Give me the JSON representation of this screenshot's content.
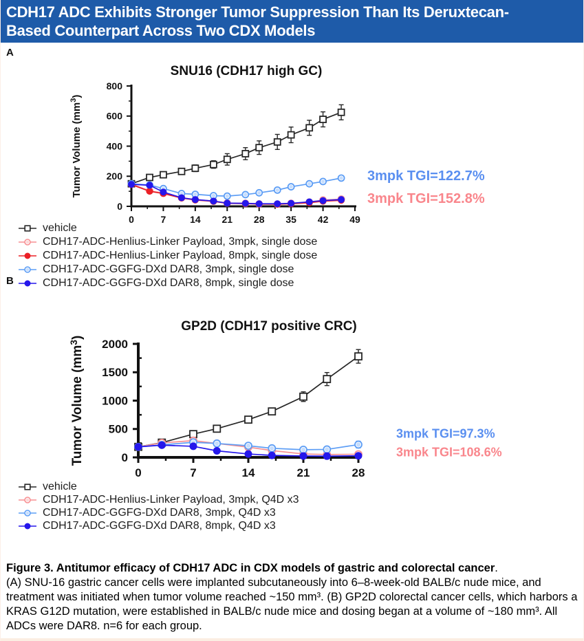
{
  "header": {
    "title_line1": "CDH17 ADC Exhibits Stronger Tumor Suppression Than Its Deruxtecan-",
    "title_line2": "Based Counterpart Across Two CDX Models",
    "bg_color": "#1E5BA9",
    "text_color": "#FFFFFF"
  },
  "panel_labels": {
    "a": "A",
    "b": "B"
  },
  "colors": {
    "vehicle": "#262626",
    "henlius_3mpk": "#F78F92",
    "henlius_8mpk": "#EB2026",
    "dxd_3mpk": "#5C9DF5",
    "dxd_8mpk": "#2517EB",
    "annotation_blue": "#5A8FF0",
    "annotation_pink": "#F9868C",
    "bottom_strip": "#fbeee2"
  },
  "chart_data": [
    {
      "type": "line",
      "title": "SNU16 (CDH17 high GC)",
      "ylabel": "Tumor Volume (mm³)",
      "xlabel": "",
      "xlim": [
        0,
        49
      ],
      "ylim": [
        0,
        800
      ],
      "xticks": [
        0,
        7,
        14,
        21,
        28,
        35,
        42,
        49
      ],
      "yticks": [
        0,
        200,
        400,
        600,
        800
      ],
      "grid": false,
      "legend_position": "below",
      "x": [
        0,
        4,
        7,
        11,
        14,
        18,
        21,
        25,
        28,
        32,
        35,
        39,
        42,
        46
      ],
      "series": [
        {
          "name": "vehicle",
          "color": "#262626",
          "marker": "open-square",
          "values": [
            150,
            192,
            210,
            232,
            253,
            278,
            312,
            350,
            390,
            428,
            475,
            522,
            578,
            625
          ],
          "err": [
            10,
            18,
            20,
            20,
            22,
            25,
            38,
            40,
            45,
            50,
            52,
            50,
            50,
            50
          ]
        },
        {
          "name": "CDH17-ADC-Henlius-Linker Payload, 3mpk, single dose",
          "color": "#F78F92",
          "marker": "open-circle",
          "values": [
            148,
            103,
            88,
            57,
            45,
            35,
            22,
            20,
            16,
            15,
            20,
            28,
            42,
            48
          ],
          "err": [
            10,
            12,
            10,
            8,
            6,
            5,
            4,
            4,
            4,
            4,
            4,
            5,
            8,
            8
          ]
        },
        {
          "name": "CDH17-ADC-Henlius-Linker Payload, 8mpk, single dose",
          "color": "#EB2026",
          "marker": "filled-circle",
          "values": [
            145,
            100,
            85,
            55,
            42,
            33,
            20,
            18,
            15,
            14,
            17,
            24,
            34,
            40
          ],
          "err": [
            10,
            10,
            10,
            8,
            6,
            5,
            4,
            4,
            4,
            4,
            4,
            5,
            6,
            6
          ]
        },
        {
          "name": "CDH17-ADC-GGFG-DXd DAR8, 3mpk, single dose",
          "color": "#5C9DF5",
          "marker": "open-circle",
          "values": [
            150,
            142,
            118,
            85,
            80,
            71,
            68,
            78,
            90,
            108,
            130,
            150,
            165,
            188
          ],
          "err": [
            10,
            10,
            10,
            8,
            8,
            8,
            8,
            8,
            8,
            10,
            12,
            10,
            10,
            12
          ]
        },
        {
          "name": "CDH17-ADC-GGFG-DXd DAR8, 8mpk, single dose",
          "color": "#2517EB",
          "marker": "filled-circle",
          "values": [
            146,
            140,
            95,
            57,
            45,
            35,
            21,
            20,
            17,
            17,
            20,
            30,
            38,
            45
          ],
          "err": [
            10,
            8,
            8,
            6,
            5,
            4,
            4,
            4,
            4,
            4,
            4,
            5,
            6,
            6
          ]
        }
      ],
      "annotations": [
        {
          "text": "3mpk TGI=122.7%",
          "color": "#5A8FF0",
          "y": 205
        },
        {
          "text": "3mpk TGI=152.8%",
          "color": "#F9868C",
          "y": 55
        }
      ]
    },
    {
      "type": "line",
      "title": "GP2D (CDH17 positive CRC)",
      "ylabel": "Tumor Volume (mm³)",
      "xlabel": "",
      "xlim": [
        0,
        28
      ],
      "ylim": [
        0,
        2000
      ],
      "xticks": [
        0,
        7,
        14,
        21,
        28
      ],
      "yticks": [
        0,
        500,
        1000,
        1500,
        2000
      ],
      "grid": false,
      "legend_position": "below",
      "x": [
        0,
        3,
        7,
        10,
        14,
        17,
        21,
        24,
        28
      ],
      "series": [
        {
          "name": "vehicle",
          "color": "#262626",
          "marker": "open-square",
          "values": [
            185,
            260,
            410,
            505,
            665,
            810,
            1070,
            1380,
            1780
          ],
          "err": [
            15,
            20,
            30,
            30,
            50,
            60,
            85,
            115,
            120
          ]
        },
        {
          "name": "CDH17-ADC-Henlius-Linker Payload, 3mpk, Q4D x3",
          "color": "#F78F92",
          "marker": "open-circle",
          "values": [
            185,
            255,
            295,
            245,
            180,
            120,
            60,
            50,
            55
          ],
          "err": [
            15,
            20,
            40,
            30,
            20,
            15,
            10,
            8,
            10
          ]
        },
        {
          "name": "CDH17-ADC-GGFG-DXd DAR8, 3mpk, Q4D x3",
          "color": "#5C9DF5",
          "marker": "open-circle",
          "values": [
            185,
            220,
            265,
            245,
            205,
            160,
            135,
            140,
            225
          ],
          "err": [
            15,
            15,
            25,
            25,
            25,
            20,
            25,
            30,
            60
          ]
        },
        {
          "name": "CDH17-ADC-GGFG-DXd DAR8, 8mpk, Q4D x3",
          "color": "#2517EB",
          "marker": "filled-circle",
          "values": [
            185,
            215,
            195,
            115,
            60,
            35,
            25,
            22,
            28
          ],
          "err": [
            15,
            12,
            15,
            12,
            8,
            6,
            5,
            5,
            6
          ]
        }
      ],
      "annotations": [
        {
          "text": "3mpk TGI=97.3%",
          "color": "#5A8FF0",
          "y": 420
        },
        {
          "text": "3mpk TGI=108.6%",
          "color": "#F9868C",
          "y": 95
        }
      ]
    }
  ],
  "caption": {
    "bold": "Figure 3. Antitumor efficacy of CDH17 ADC in CDX models of gastric and colorectal cancer",
    "bold_period": ".",
    "rest": "(A) SNU-16 gastric cancer cells were implanted subcutaneously into 6–8-week-old BALB/c nude mice, and treatment was initiated when tumor volume reached ~150 mm³. (B) GP2D colorectal cancer cells, which harbors a KRAS G12D mutation, were established in BALB/c nude mice and dosing began at a volume of ~180 mm³. All ADCs were DAR8. n=6 for each group."
  }
}
